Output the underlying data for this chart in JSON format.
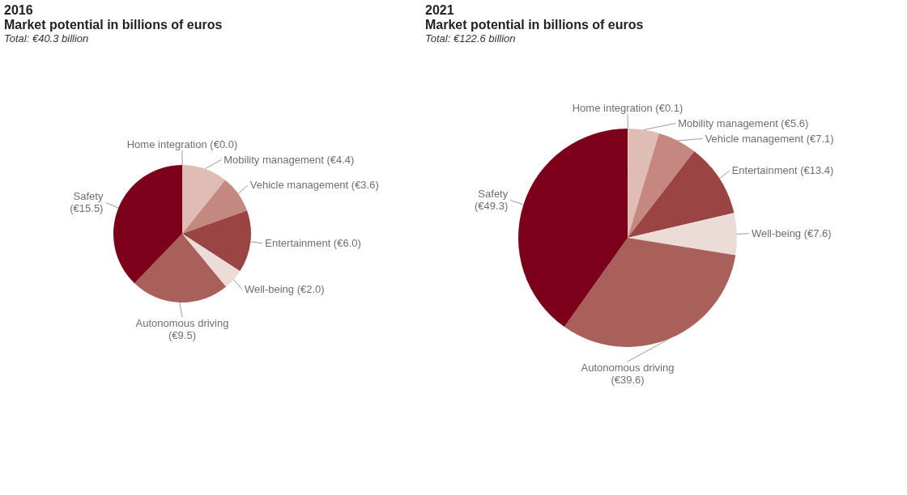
{
  "chart_data": [
    {
      "type": "pie",
      "title": "2016",
      "subtitle": "Market potential in billions of euros",
      "annotations": [
        "Total: €40.3 billion"
      ],
      "categories": [
        "Home integration",
        "Mobility management",
        "Vehicle management",
        "Entertainment",
        "Well-being",
        "Autonomous driving",
        "Safety"
      ],
      "values": [
        0.0,
        4.4,
        3.6,
        6.0,
        2.0,
        9.5,
        15.5
      ],
      "value_labels": [
        "(€0.0)",
        "(€4.4)",
        "(€3.6)",
        "(€6.0)",
        "(€2.0)",
        "(€9.5)",
        "(€15.5)"
      ],
      "colors": [
        "#f1e4e0",
        "#dfbdb5",
        "#c48880",
        "#9b4444",
        "#ecdcd8",
        "#a9605a",
        "#7c0019"
      ]
    },
    {
      "type": "pie",
      "title": "2021",
      "subtitle": "Market potential in billions of euros",
      "annotations": [
        "Total: €122.6 billion"
      ],
      "categories": [
        "Home integration",
        "Mobility management",
        "Vehicle management",
        "Entertainment",
        "Well-being",
        "Autonomous driving",
        "Safety"
      ],
      "values": [
        0.1,
        5.6,
        7.1,
        13.4,
        7.6,
        39.6,
        49.3
      ],
      "value_labels": [
        "(€0.1)",
        "(€5.6)",
        "(€7.1)",
        "(€13.4)",
        "(€7.6)",
        "(€39.6)",
        "(€49.3)"
      ],
      "colors": [
        "#f1e4e0",
        "#dfbdb5",
        "#c48880",
        "#9b4444",
        "#ecdcd8",
        "#a9605a",
        "#7c0019"
      ]
    }
  ]
}
